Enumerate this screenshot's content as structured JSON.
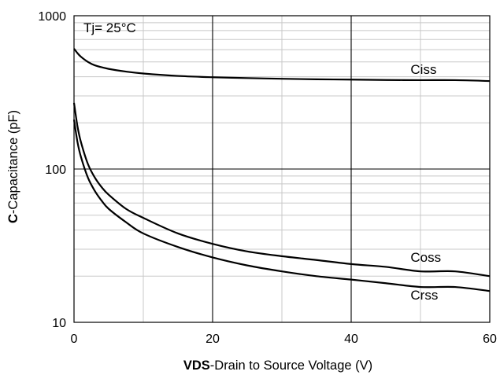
{
  "chart_data": {
    "type": "line",
    "title": "",
    "annotation": "Tj= 25°C",
    "xlabel_bold": "VDS",
    "xlabel_rest": "-Drain to Source Voltage (V)",
    "ylabel_bold": "C",
    "ylabel_rest": "-Capacitance (pF)",
    "xlim": [
      0,
      60
    ],
    "ylim": [
      10,
      1000
    ],
    "yscale": "log",
    "grid": true,
    "x_ticks": [
      {
        "value": 0,
        "label": "0"
      },
      {
        "value": 20,
        "label": "20"
      },
      {
        "value": 40,
        "label": "40"
      },
      {
        "value": 60,
        "label": "60"
      }
    ],
    "y_ticks": [
      {
        "value": 10,
        "label": "10"
      },
      {
        "value": 100,
        "label": "100"
      },
      {
        "value": 1000,
        "label": "1000"
      }
    ],
    "series": [
      {
        "name": "Ciss",
        "x": [
          0,
          0.5,
          1,
          2,
          3,
          5,
          7.5,
          10,
          15,
          20,
          25,
          30,
          35,
          40,
          45,
          50,
          55,
          60
        ],
        "y": [
          610,
          570,
          540,
          500,
          475,
          450,
          432,
          420,
          405,
          397,
          392,
          388,
          385,
          383,
          381,
          380,
          380,
          375
        ]
      },
      {
        "name": "Coss",
        "x": [
          0,
          0.5,
          1,
          2,
          3,
          4,
          5,
          7.5,
          10,
          15,
          20,
          25,
          30,
          35,
          40,
          45,
          50,
          55,
          60
        ],
        "y": [
          270,
          190,
          150,
          108,
          88,
          76,
          68,
          55,
          48,
          38,
          32.5,
          29,
          27,
          25.5,
          24,
          23,
          21.5,
          21.5,
          20
        ]
      },
      {
        "name": "Crss",
        "x": [
          0,
          0.5,
          1,
          2,
          3,
          4,
          5,
          7.5,
          10,
          15,
          20,
          25,
          30,
          35,
          40,
          45,
          50,
          55,
          60
        ],
        "y": [
          210,
          150,
          120,
          88,
          72,
          62,
          55,
          45,
          38,
          31,
          26.5,
          23.5,
          21.5,
          20,
          19,
          18,
          17,
          17,
          16
        ]
      }
    ]
  }
}
